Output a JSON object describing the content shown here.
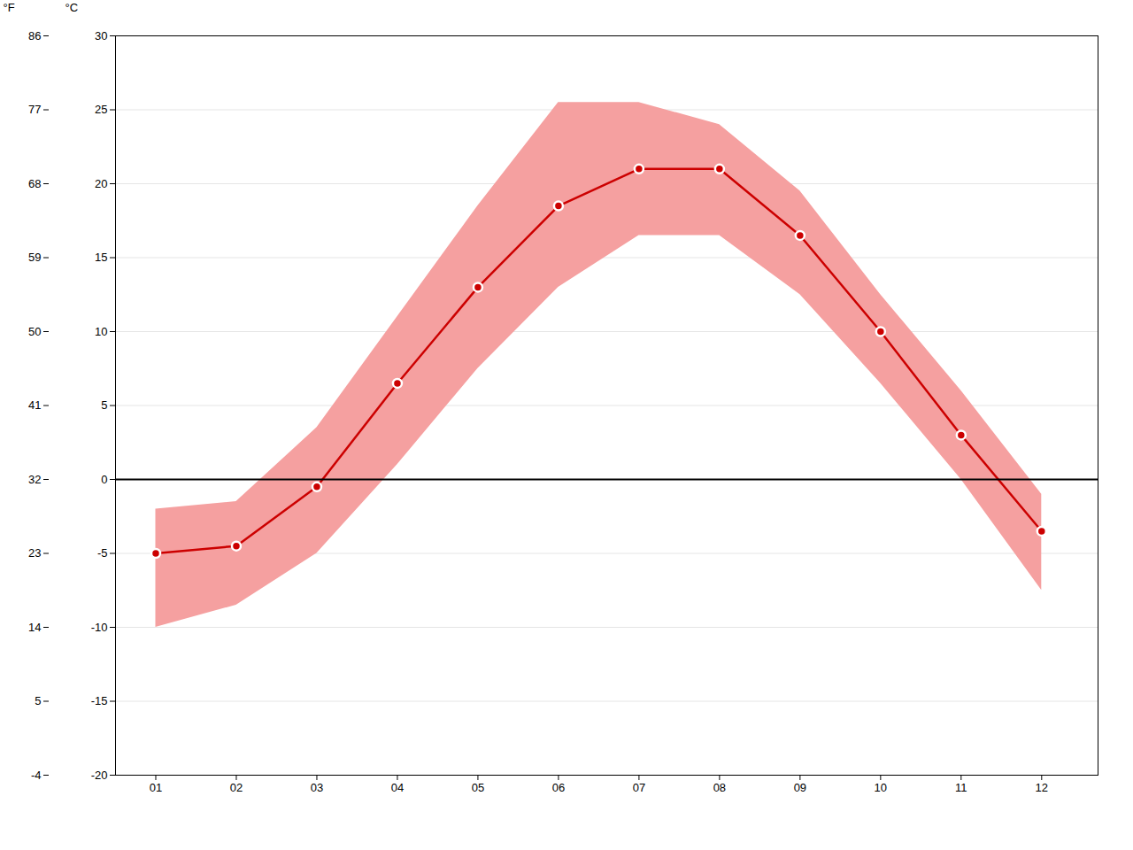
{
  "chart_data": {
    "type": "line",
    "x": [
      1,
      2,
      3,
      4,
      5,
      6,
      7,
      8,
      9,
      10,
      11,
      12
    ],
    "xlim": [
      0.5,
      12.7
    ],
    "xticks": [
      {
        "value": 1,
        "label": "01"
      },
      {
        "value": 2,
        "label": "02"
      },
      {
        "value": 3,
        "label": "03"
      },
      {
        "value": 4,
        "label": "04"
      },
      {
        "value": 5,
        "label": "05"
      },
      {
        "value": 6,
        "label": "06"
      },
      {
        "value": 7,
        "label": "07"
      },
      {
        "value": 8,
        "label": "08"
      },
      {
        "value": 9,
        "label": "09"
      },
      {
        "value": 10,
        "label": "10"
      },
      {
        "value": 11,
        "label": "11"
      },
      {
        "value": 12,
        "label": "12"
      }
    ],
    "ylabel": "°C",
    "ylim": [
      -20,
      30
    ],
    "yticks": [
      -20,
      -15,
      -10,
      -5,
      0,
      5,
      10,
      15,
      20,
      25,
      30
    ],
    "y2label": "°F",
    "y2lim": [
      -4,
      86
    ],
    "y2ticks": [
      -4,
      5,
      14,
      23,
      32,
      41,
      50,
      59,
      68,
      77,
      86
    ],
    "grid": true,
    "series": [
      {
        "type": "area",
        "color": "#f5a0a0",
        "low": [
          -10.0,
          -8.5,
          -5.0,
          1.0,
          7.5,
          13.0,
          16.5,
          16.5,
          12.5,
          6.5,
          0.0,
          -7.5
        ],
        "high": [
          -2.0,
          -1.5,
          3.5,
          11.0,
          18.5,
          25.5,
          25.5,
          24.0,
          19.5,
          12.5,
          6.0,
          -1.0
        ]
      },
      {
        "type": "line",
        "color": "#cc0000",
        "marker": "circle",
        "values": [
          -5.0,
          -4.5,
          -0.5,
          6.5,
          13.0,
          18.5,
          21.0,
          21.0,
          16.5,
          10.0,
          3.0,
          -3.5
        ]
      }
    ],
    "annotations": [
      {
        "type": "hline",
        "y": 0,
        "color": "#000000"
      }
    ]
  }
}
